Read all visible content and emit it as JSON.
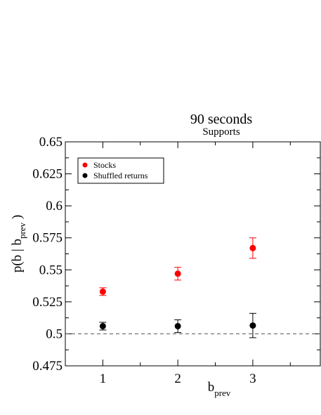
{
  "chart_data": {
    "type": "scatter",
    "title": "90 seconds",
    "subtitle": "Supports",
    "xlabel_main": "b",
    "xlabel_sub": "prev",
    "ylabel_main": "p(b | b",
    "ylabel_sub": "prev",
    "ylabel_close": " )",
    "xlim": [
      0.5,
      3.9
    ],
    "ylim": [
      0.475,
      0.65
    ],
    "xticks": [
      1,
      2,
      3
    ],
    "xtick_labels": [
      "1",
      "2",
      "3"
    ],
    "yticks": [
      0.475,
      0.5,
      0.525,
      0.55,
      0.575,
      0.6,
      0.625,
      0.65
    ],
    "ytick_labels": [
      "0.475",
      "0.5",
      "0.525",
      "0.55",
      "0.575",
      "0.6",
      "0.625",
      "0.65"
    ],
    "reference_line": {
      "y": 0.5,
      "style": "dashed",
      "color": "#555555"
    },
    "grid": false,
    "legend": {
      "placement": "top-left"
    },
    "series": [
      {
        "name": "Stocks",
        "color": "#ff0000",
        "x": [
          1,
          2,
          3
        ],
        "y": [
          0.533,
          0.547,
          0.567
        ],
        "err": [
          0.003,
          0.005,
          0.008
        ]
      },
      {
        "name": "Shuffled returns",
        "color": "#000000",
        "x": [
          1,
          2,
          3
        ],
        "y": [
          0.506,
          0.506,
          0.5065
        ],
        "err": [
          0.003,
          0.005,
          0.0095
        ]
      }
    ]
  }
}
